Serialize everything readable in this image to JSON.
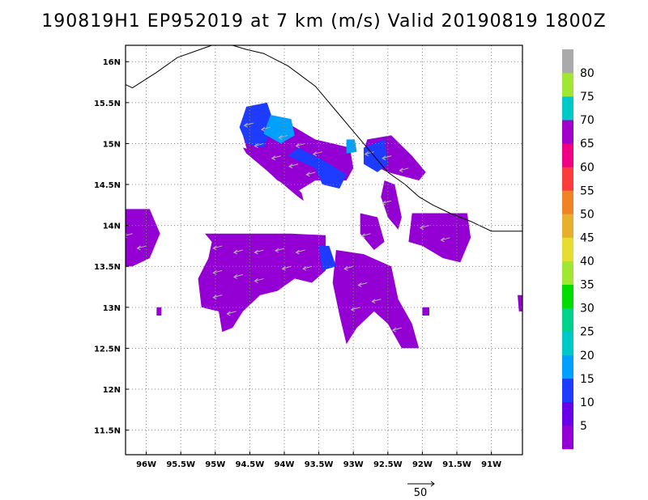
{
  "title": "190819H1  EP952019 at 7 km (m/s) Valid 20190819  1800Z",
  "chart_data": {
    "type": "heatmap",
    "title": "190819H1  EP952019 at 7 km (m/s) Valid 20190819  1800Z",
    "x_ticks": [
      "96W",
      "95.5W",
      "95W",
      "94.5W",
      "94W",
      "93.5W",
      "93W",
      "92.5W",
      "92W",
      "91.5W",
      "91W"
    ],
    "y_ticks": [
      "16N",
      "15.5N",
      "15N",
      "14.5N",
      "14N",
      "13.5N",
      "13N",
      "12.5N",
      "12N",
      "11.5N"
    ],
    "xlim_lon_west": [
      96.3,
      90.55
    ],
    "ylim_lat": [
      11.2,
      16.2
    ],
    "grid": true,
    "colorbar": {
      "labels": [
        "5",
        "10",
        "15",
        "20",
        "25",
        "30",
        "35",
        "40",
        "45",
        "50",
        "55",
        "60",
        "65",
        "70",
        "75",
        "80"
      ],
      "colors": [
        "#9400d3",
        "#6a00e8",
        "#1e3cff",
        "#00a0ff",
        "#00c8c8",
        "#00d28c",
        "#00dc00",
        "#a0e632",
        "#e6dc32",
        "#e6af2d",
        "#f08228",
        "#fa3c3c",
        "#f00082",
        "#a000c8",
        "#00c8c8",
        "#a0e632",
        "#aaaaaa"
      ]
    },
    "reference_vector": {
      "label": "50",
      "magnitude_ms": 50
    },
    "dominant_speed_ms": "0-10",
    "peak_speed_ms": "15-20"
  }
}
